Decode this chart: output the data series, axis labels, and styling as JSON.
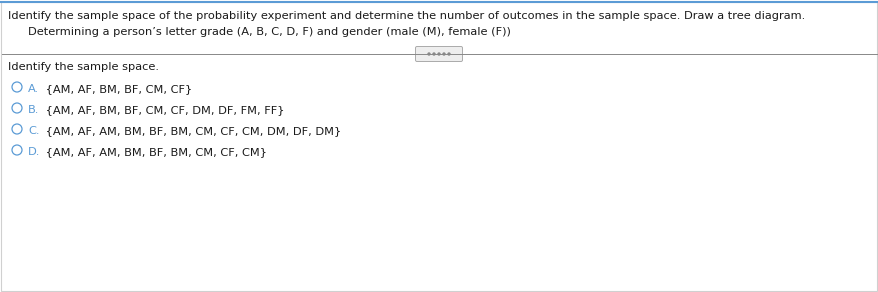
{
  "background_color": "#ffffff",
  "border_top_color": "#5b9bd5",
  "border_other_color": "#d0d0d0",
  "title_text": "Identify the sample space of the probability experiment and determine the number of outcomes in the sample space. Draw a tree diagram.",
  "subtitle_text": "Determining a person’s letter grade (A, B, C, D, F) and gender (male (M), female (F))",
  "section_label": "Identify the sample space.",
  "options": [
    {
      "label": "A.",
      "text": " {AM, AF, BM, BF, CM, CF}"
    },
    {
      "label": "B.",
      "text": " {AM, AF, BM, BF, CM, CF, DM, DF, FM, FF}"
    },
    {
      "label": "C.",
      "text": " {AM, AF, AM, BM, BF, BM, CM, CF, CM, DM, DF, DM}"
    },
    {
      "label": "D.",
      "text": " {AM, AF, AM, BM, BF, BM, CM, CF, CM}"
    }
  ],
  "title_fontsize": 8.2,
  "subtitle_fontsize": 8.2,
  "section_fontsize": 8.2,
  "option_fontsize": 8.2,
  "text_color": "#1a1a1a",
  "circle_color": "#5b9bd5",
  "divider_color": "#888888",
  "dots_color": "#888888",
  "dots_box_color": "#eeeeee",
  "dots_box_border": "#aaaaaa"
}
